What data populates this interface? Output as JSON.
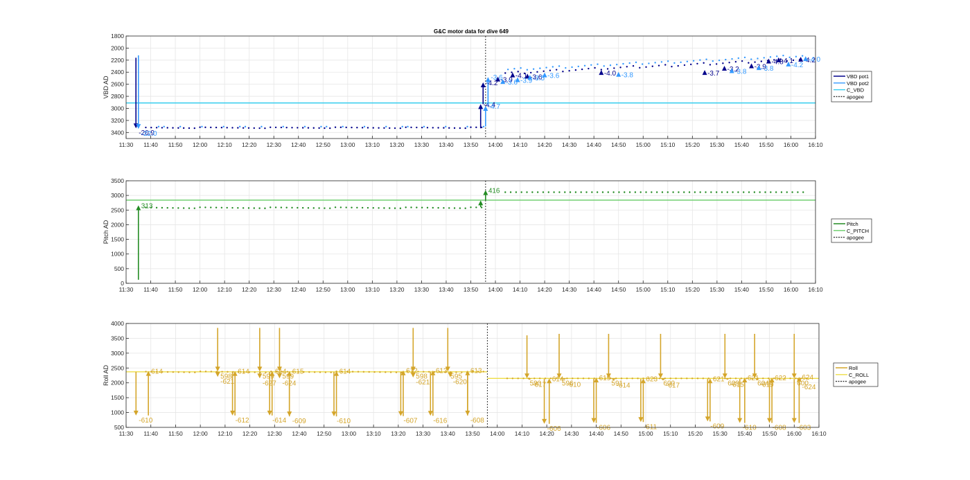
{
  "title": "G&C motor data for dive 649",
  "colors": {
    "vbd1": "#00008B",
    "vbd2": "#3399FF",
    "cvbd": "#33CCEE",
    "pitch": "#228B22",
    "cpitch": "#66CC66",
    "roll": "#D4A52A",
    "croll": "#EEDD44",
    "grid": "#E6E6E6",
    "apogee": "#333333"
  },
  "chart_data": [
    {
      "type": "scatter",
      "ylabel": "VBD AD",
      "y_reversed": true,
      "xlim": [
        "11:30",
        "16:10"
      ],
      "ylim": [
        1800,
        3500
      ],
      "xticks": [
        "11:30",
        "11:40",
        "11:50",
        "12:00",
        "12:10",
        "12:20",
        "12:30",
        "12:40",
        "12:50",
        "13:00",
        "13:10",
        "13:20",
        "13:30",
        "13:40",
        "13:50",
        "14:00",
        "14:10",
        "14:20",
        "14:30",
        "14:40",
        "14:50",
        "15:00",
        "15:10",
        "15:20",
        "15:30",
        "15:40",
        "15:50",
        "16:00",
        "16:10"
      ],
      "yticks": [
        "1800",
        "2000",
        "2200",
        "2400",
        "2600",
        "2800",
        "3000",
        "3200",
        "3400"
      ],
      "grid": true,
      "legend_position": "right",
      "legend": [
        "VBD pot1",
        "VBD pot2",
        "C_VBD",
        "apogee"
      ],
      "apogee_time": "13:56",
      "reference_lines": [
        {
          "name": "C_VBD",
          "value": 2910
        }
      ],
      "descent_level": 3320,
      "arrows": [
        {
          "series": "VBD pot1",
          "t": "11:34",
          "from": 2160,
          "to": 3330,
          "label": "-20.9"
        },
        {
          "series": "VBD pot2",
          "t": "11:35",
          "from": 2120,
          "to": 3340,
          "label": "-22.0"
        },
        {
          "series": "VBD pot1",
          "t": "13:54",
          "from": 3330,
          "to": 2930,
          "label": "-4.4"
        },
        {
          "series": "VBD pot1",
          "t": "13:55",
          "from": 2930,
          "to": 2570,
          "label": "-4.2"
        },
        {
          "series": "VBD pot2",
          "t": "13:56",
          "from": 3300,
          "to": 2960,
          "label": "-4.7"
        },
        {
          "series": "VBD pot2",
          "t": "13:57",
          "from": 2950,
          "to": 2480,
          "label": "-3.6"
        }
      ],
      "ascent_labels": [
        {
          "t": "14:01",
          "y": 2520,
          "label": "-3.9",
          "series": "VBD pot1"
        },
        {
          "t": "14:03",
          "y": 2560,
          "label": "-3.6",
          "series": "VBD pot2"
        },
        {
          "t": "14:07",
          "y": 2450,
          "label": "-4.1",
          "series": "VBD pot1"
        },
        {
          "t": "14:09",
          "y": 2530,
          "label": "-3.9",
          "series": "VBD pot2"
        },
        {
          "t": "14:13",
          "y": 2470,
          "label": "-3.6",
          "series": "VBD pot1"
        },
        {
          "t": "14:14",
          "y": 2490,
          "label": "-3.5",
          "series": "VBD pot2"
        },
        {
          "t": "14:20",
          "y": 2450,
          "label": "-3.6",
          "series": "VBD pot2"
        },
        {
          "t": "14:43",
          "y": 2410,
          "label": "-4.0",
          "series": "VBD pot1"
        },
        {
          "t": "14:50",
          "y": 2440,
          "label": "-3.8",
          "series": "VBD pot2"
        },
        {
          "t": "15:25",
          "y": 2410,
          "label": "-3.7",
          "series": "VBD pot1"
        },
        {
          "t": "15:33",
          "y": 2340,
          "label": "-3.2",
          "series": "VBD pot1"
        },
        {
          "t": "15:36",
          "y": 2380,
          "label": "-3.8",
          "series": "VBD pot2"
        },
        {
          "t": "15:44",
          "y": 2300,
          "label": "-3.9",
          "series": "VBD pot1"
        },
        {
          "t": "15:47",
          "y": 2330,
          "label": "-3.8",
          "series": "VBD pot2"
        },
        {
          "t": "15:51",
          "y": 2220,
          "label": "-4.8",
          "series": "VBD pot1"
        },
        {
          "t": "15:55",
          "y": 2200,
          "label": "-4.1",
          "series": "VBD pot1"
        },
        {
          "t": "15:59",
          "y": 2270,
          "label": "-4.2",
          "series": "VBD pot2"
        },
        {
          "t": "16:04",
          "y": 2190,
          "label": "-4.2",
          "series": "VBD pot1"
        },
        {
          "t": "16:06",
          "y": 2180,
          "label": "-4.0",
          "series": "VBD pot2"
        }
      ]
    },
    {
      "type": "scatter",
      "ylabel": "Pitch AD",
      "xlim": [
        "11:30",
        "16:10"
      ],
      "ylim": [
        0,
        3500
      ],
      "xticks": [
        "11:30",
        "11:40",
        "11:50",
        "12:00",
        "12:10",
        "12:20",
        "12:30",
        "12:40",
        "12:50",
        "13:00",
        "13:10",
        "13:20",
        "13:30",
        "13:40",
        "13:50",
        "14:00",
        "14:10",
        "14:20",
        "14:30",
        "14:40",
        "14:50",
        "15:00",
        "15:10",
        "15:20",
        "15:30",
        "15:40",
        "15:50",
        "16:00",
        "16:10"
      ],
      "yticks": [
        "0",
        "500",
        "1000",
        "1500",
        "2000",
        "2500",
        "3000",
        "3500"
      ],
      "grid": true,
      "legend_position": "right",
      "legend": [
        "Pitch",
        "C_PITCH",
        "apogee"
      ],
      "apogee_time": "13:56",
      "reference_lines": [
        {
          "name": "C_PITCH",
          "value": 2840
        }
      ],
      "descent_level": 2580,
      "ascent_level": 3110,
      "arrows": [
        {
          "series": "Pitch",
          "t": "11:35",
          "from": 120,
          "to": 2660,
          "label": "313"
        },
        {
          "series": "Pitch",
          "t": "13:54",
          "from": 2600,
          "to": 2830,
          "label": ""
        },
        {
          "series": "Pitch",
          "t": "13:56",
          "from": 2830,
          "to": 3180,
          "label": "416"
        }
      ]
    },
    {
      "type": "scatter",
      "ylabel": "Roll AD",
      "xlim": [
        "11:30",
        "16:10"
      ],
      "ylim": [
        500,
        4000
      ],
      "xticks": [
        "11:30",
        "11:40",
        "11:50",
        "12:00",
        "12:10",
        "12:20",
        "12:30",
        "12:40",
        "12:50",
        "13:00",
        "13:10",
        "13:20",
        "13:30",
        "13:40",
        "13:50",
        "14:00",
        "14:10",
        "14:20",
        "14:30",
        "14:40",
        "14:50",
        "15:00",
        "15:10",
        "15:20",
        "15:30",
        "15:40",
        "15:50",
        "16:00",
        "16:10"
      ],
      "yticks": [
        "500",
        "1000",
        "1500",
        "2000",
        "2500",
        "3000",
        "3500",
        "4000"
      ],
      "grid": true,
      "legend_position": "right",
      "legend": [
        "Roll",
        "C_ROLL",
        "apogee"
      ],
      "apogee_time": "13:56",
      "reference_lines": [
        {
          "name": "C_ROLL",
          "value": 2370,
          "until": "13:56"
        },
        {
          "name": "C_ROLL",
          "value": 2150,
          "from": "13:56"
        }
      ],
      "descent_level": 2370,
      "ascent_level": 2150,
      "arrows": [
        {
          "t": "11:34",
          "from": 2370,
          "to": 900,
          "label": "-610"
        },
        {
          "t": "11:39",
          "from": 900,
          "to": 2400,
          "label": "614"
        },
        {
          "t": "12:07",
          "from": 3850,
          "to": 2380,
          "label": "598"
        },
        {
          "t": "12:07",
          "from": 2380,
          "to": 2200,
          "label": "-621"
        },
        {
          "t": "12:13",
          "from": 2370,
          "to": 900,
          "label": "-612"
        },
        {
          "t": "12:14",
          "from": 900,
          "to": 2400,
          "label": "614"
        },
        {
          "t": "12:24",
          "from": 3850,
          "to": 2380,
          "label": "599"
        },
        {
          "t": "12:24",
          "from": 2380,
          "to": 2150,
          "label": "-627"
        },
        {
          "t": "12:28",
          "from": 2370,
          "to": 900,
          "label": "-614"
        },
        {
          "t": "12:29",
          "from": 900,
          "to": 2400,
          "label": "614"
        },
        {
          "t": "12:32",
          "from": 3850,
          "to": 2380,
          "label": "599"
        },
        {
          "t": "12:32",
          "from": 2380,
          "to": 2150,
          "label": "-624"
        },
        {
          "t": "12:36",
          "from": 2370,
          "to": 870,
          "label": "-609"
        },
        {
          "t": "12:36",
          "from": 870,
          "to": 2400,
          "label": "615"
        },
        {
          "t": "12:54",
          "from": 2370,
          "to": 870,
          "label": "-610"
        },
        {
          "t": "12:55",
          "from": 870,
          "to": 2400,
          "label": "614"
        },
        {
          "t": "13:21",
          "from": 2370,
          "to": 880,
          "label": "-607"
        },
        {
          "t": "13:22",
          "from": 880,
          "to": 2420,
          "label": "612"
        },
        {
          "t": "13:26",
          "from": 3850,
          "to": 2380,
          "label": "598"
        },
        {
          "t": "13:26",
          "from": 2380,
          "to": 2180,
          "label": "-621"
        },
        {
          "t": "13:33",
          "from": 2370,
          "to": 890,
          "label": "-616"
        },
        {
          "t": "13:34",
          "from": 890,
          "to": 2420,
          "label": "613"
        },
        {
          "t": "13:40",
          "from": 3850,
          "to": 2380,
          "label": "595"
        },
        {
          "t": "13:41",
          "from": 2380,
          "to": 2190,
          "label": "-620"
        },
        {
          "t": "13:48",
          "from": 2370,
          "to": 900,
          "label": "-608"
        },
        {
          "t": "13:48",
          "from": 900,
          "to": 2420,
          "label": "613"
        },
        {
          "t": "14:12",
          "from": 3600,
          "to": 2150,
          "label": "590"
        },
        {
          "t": "14:13",
          "from": 2150,
          "to": 2100,
          "label": "-617"
        },
        {
          "t": "14:19",
          "from": 2130,
          "to": 620,
          "label": "-606"
        },
        {
          "t": "14:21",
          "from": 620,
          "to": 2150,
          "label": "614"
        },
        {
          "t": "14:25",
          "from": 3650,
          "to": 2150,
          "label": "596"
        },
        {
          "t": "14:27",
          "from": 2150,
          "to": 2100,
          "label": "-610"
        },
        {
          "t": "14:39",
          "from": 2130,
          "to": 650,
          "label": "-606"
        },
        {
          "t": "14:40",
          "from": 650,
          "to": 2180,
          "label": "619"
        },
        {
          "t": "14:45",
          "from": 3650,
          "to": 2150,
          "label": "591"
        },
        {
          "t": "14:47",
          "from": 2150,
          "to": 2080,
          "label": "-614"
        },
        {
          "t": "14:58",
          "from": 2130,
          "to": 680,
          "label": "-611"
        },
        {
          "t": "14:59",
          "from": 680,
          "to": 2150,
          "label": "623"
        },
        {
          "t": "15:06",
          "from": 3650,
          "to": 2150,
          "label": "600"
        },
        {
          "t": "15:07",
          "from": 2150,
          "to": 2080,
          "label": "-617"
        },
        {
          "t": "15:25",
          "from": 2130,
          "to": 700,
          "label": "-609"
        },
        {
          "t": "15:26",
          "from": 700,
          "to": 2150,
          "label": "621"
        },
        {
          "t": "15:32",
          "from": 3650,
          "to": 2150,
          "label": "609"
        },
        {
          "t": "15:33",
          "from": 2150,
          "to": 2100,
          "label": "-615"
        },
        {
          "t": "15:38",
          "from": 2130,
          "to": 650,
          "label": "-610"
        },
        {
          "t": "15:40",
          "from": 650,
          "to": 2180,
          "label": "621"
        },
        {
          "t": "15:44",
          "from": 3650,
          "to": 2150,
          "label": "604"
        },
        {
          "t": "15:45",
          "from": 2150,
          "to": 2100,
          "label": "-619"
        },
        {
          "t": "15:50",
          "from": 2130,
          "to": 650,
          "label": "-608"
        },
        {
          "t": "15:51",
          "from": 650,
          "to": 2180,
          "label": "622"
        },
        {
          "t": "16:00",
          "from": 3650,
          "to": 2150,
          "label": "600"
        },
        {
          "t": "16:02",
          "from": 2150,
          "to": 2020,
          "label": "-624"
        },
        {
          "t": "16:00",
          "from": 2130,
          "to": 650,
          "label": "-603"
        },
        {
          "t": "16:02",
          "from": 650,
          "to": 2200,
          "label": "624"
        }
      ]
    }
  ]
}
